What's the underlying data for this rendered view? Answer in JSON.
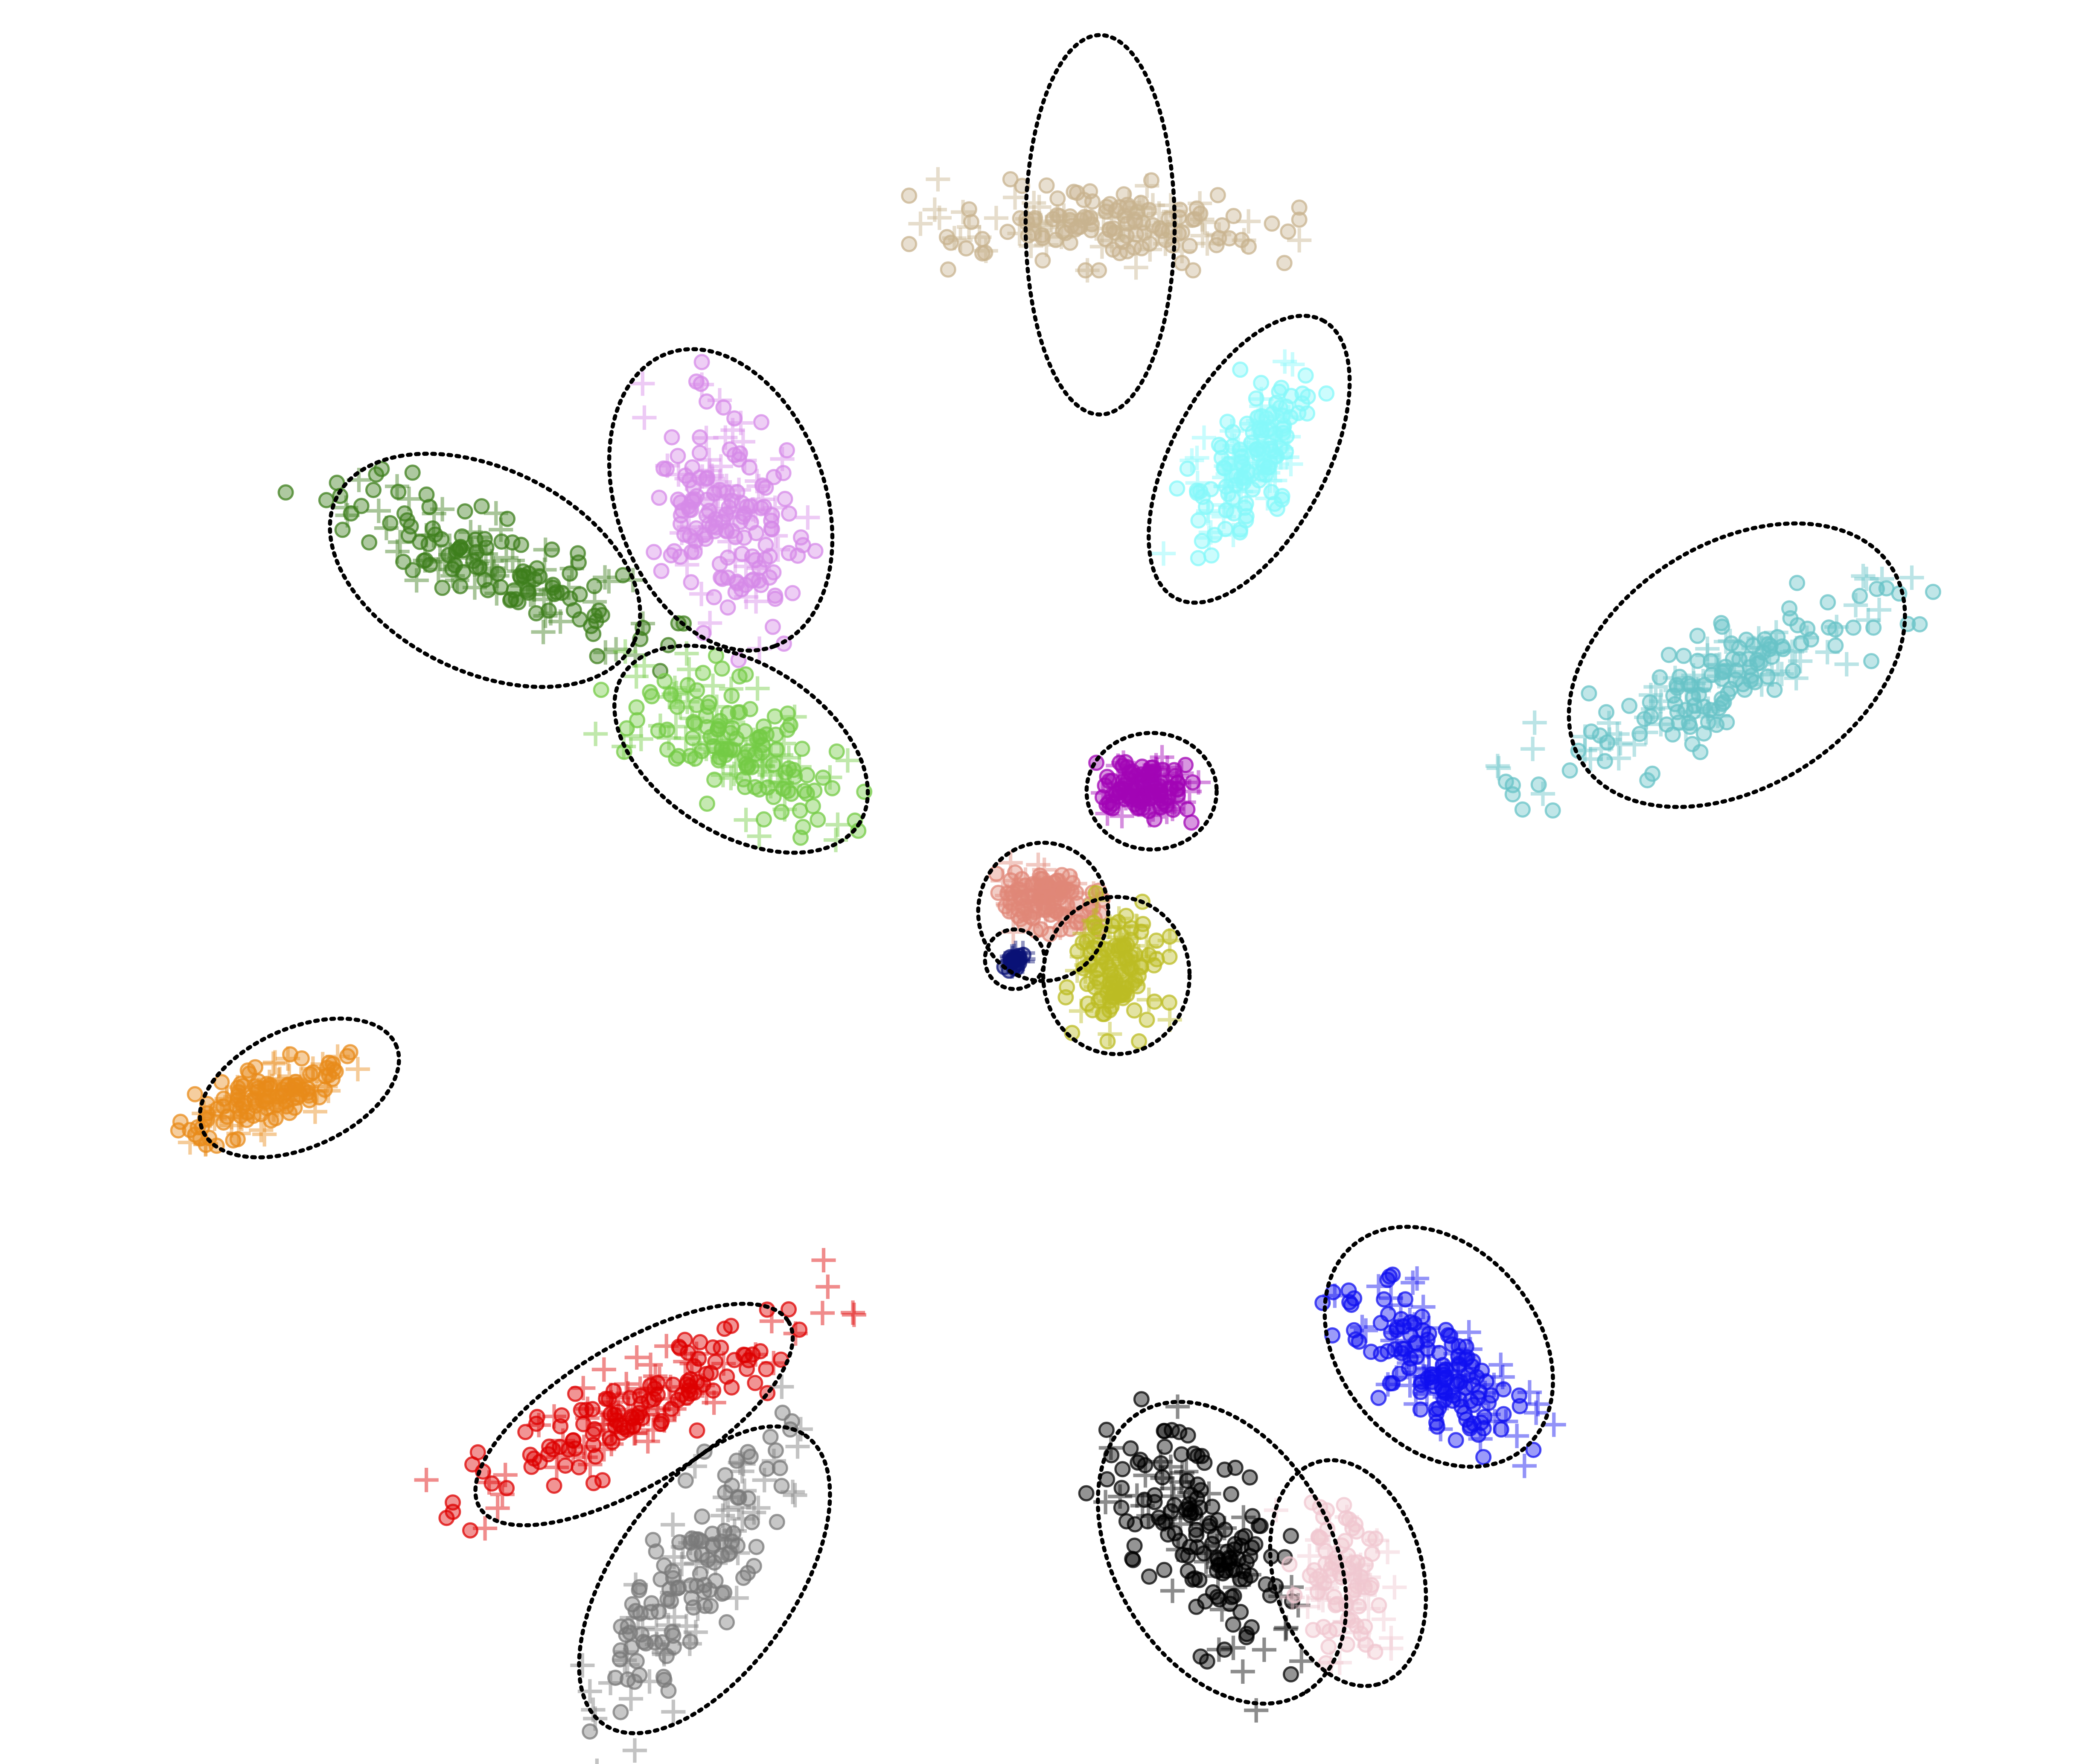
{
  "chart_data": {
    "type": "scatter",
    "title": "",
    "xlabel": "",
    "ylabel": "",
    "xlim": [
      0,
      1550
    ],
    "ylim": [
      0,
      1300
    ],
    "grid": false,
    "legend": "none",
    "axes_visible": false,
    "marker_styles": [
      "circle",
      "plus"
    ],
    "clusters": [
      {
        "color": "#c8b38f",
        "center": [
          815,
          165
        ],
        "spread": [
          14,
          60
        ],
        "angle": 90,
        "count": 180,
        "ellipse": {
          "cx": 812,
          "cy": 165,
          "rx": 140,
          "ry": 55,
          "angle": 90
        }
      },
      {
        "color": "#86f8fa",
        "center": [
          920,
          345
        ],
        "spread": [
          35,
          16
        ],
        "angle": -62,
        "count": 170,
        "ellipse": {
          "cx": 922,
          "cy": 338,
          "rx": 116,
          "ry": 57,
          "angle": -62
        }
      },
      {
        "color": "#d68ae8",
        "center": [
          535,
          375
        ],
        "spread": [
          45,
          25
        ],
        "angle": 70,
        "count": 190,
        "ellipse": {
          "cx": 532,
          "cy": 368,
          "rx": 115,
          "ry": 77,
          "angle": 70
        }
      },
      {
        "color": "#3d7f1c",
        "center": [
          360,
          415
        ],
        "spread": [
          70,
          15
        ],
        "angle": 26,
        "count": 170,
        "ellipse": {
          "cx": 358,
          "cy": 420,
          "rx": 122,
          "ry": 75,
          "angle": 26
        }
      },
      {
        "color": "#74cb45",
        "center": [
          545,
          550
        ],
        "spread": [
          45,
          20
        ],
        "angle": 32,
        "count": 180,
        "ellipse": {
          "cx": 547,
          "cy": 552,
          "rx": 103,
          "ry": 63,
          "angle": 32
        }
      },
      {
        "color": "#68c3c7",
        "center": [
          1275,
          500
        ],
        "spread": [
          75,
          16
        ],
        "angle": -28,
        "count": 190,
        "ellipse": {
          "cx": 1282,
          "cy": 490,
          "rx": 135,
          "ry": 90,
          "angle": -32
        }
      },
      {
        "color": "#a204b5",
        "center": [
          845,
          580
        ],
        "spread": [
          16,
          10
        ],
        "angle": 10,
        "count": 140,
        "ellipse": {
          "cx": 850,
          "cy": 583,
          "rx": 48,
          "ry": 43,
          "angle": 0
        }
      },
      {
        "color": "#e08778",
        "center": [
          773,
          662
        ],
        "spread": [
          17,
          13
        ],
        "angle": 0,
        "count": 140,
        "ellipse": {
          "cx": 770,
          "cy": 672,
          "rx": 48,
          "ry": 51,
          "angle": 0
        }
      },
      {
        "color": "#bcbc24",
        "center": [
          825,
          710
        ],
        "spread": [
          16,
          24
        ],
        "angle": 0,
        "count": 150,
        "ellipse": {
          "cx": 824,
          "cy": 719,
          "rx": 54,
          "ry": 58,
          "angle": 0
        }
      },
      {
        "color": "#0a1276",
        "center": [
          749,
          708
        ],
        "spread": [
          4,
          4
        ],
        "angle": 0,
        "count": 30,
        "ellipse": {
          "cx": 749,
          "cy": 707,
          "rx": 22,
          "ry": 22,
          "angle": 0
        }
      },
      {
        "color": "#e88b1a",
        "center": [
          195,
          810
        ],
        "spread": [
          30,
          10
        ],
        "angle": -24,
        "count": 150,
        "ellipse": {
          "cx": 221,
          "cy": 802,
          "rx": 78,
          "ry": 44,
          "angle": -24
        }
      },
      {
        "color": "#dd0000",
        "center": [
          475,
          1035
        ],
        "spread": [
          70,
          15
        ],
        "angle": -28,
        "count": 190,
        "ellipse": {
          "cx": 468,
          "cy": 1043,
          "rx": 133,
          "ry": 52,
          "angle": -31
        }
      },
      {
        "color": "#7a7a7a",
        "center": [
          510,
          1165
        ],
        "spread": [
          65,
          18
        ],
        "angle": -57,
        "count": 170,
        "ellipse": {
          "cx": 520,
          "cy": 1165,
          "rx": 130,
          "ry": 67,
          "angle": -55
        }
      },
      {
        "color": "#1010f0",
        "center": [
          1060,
          1010
        ],
        "spread": [
          40,
          18
        ],
        "angle": 40,
        "count": 180,
        "ellipse": {
          "cx": 1062,
          "cy": 993,
          "rx": 98,
          "ry": 73,
          "angle": 50
        }
      },
      {
        "color": "#000000",
        "center": [
          890,
          1135
        ],
        "spread": [
          55,
          22
        ],
        "angle": 55,
        "count": 180,
        "ellipse": {
          "cx": 902,
          "cy": 1145,
          "rx": 120,
          "ry": 80,
          "angle": 60
        }
      },
      {
        "color": "#f0c7d0",
        "center": [
          990,
          1165
        ],
        "spread": [
          25,
          16
        ],
        "angle": 80,
        "count": 110,
        "ellipse": {
          "cx": 995,
          "cy": 1160,
          "rx": 85,
          "ry": 55,
          "angle": 75
        }
      }
    ]
  }
}
